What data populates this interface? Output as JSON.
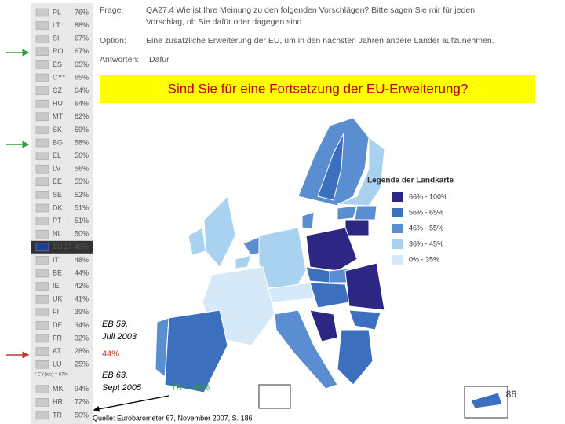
{
  "header": {
    "question_label": "Frage:",
    "question_lines": [
      "QA27.4 Wie ist Ihre Meinung zu den folgenden Vorschlägen? Bitte sagen Sie mir für jeden",
      "Vorschlag, ob Sie dafür oder dagegen sind."
    ],
    "option_label": "Option:",
    "option": "Eine zusätzliche Erweiterung der EU, um in den nächsten Jahren andere Länder aufzunehmen.",
    "answer_label": "Antworten:",
    "answer": "Dafür"
  },
  "banner": "Sind Sie für eine Fortsetzung der EU-Erweiterung?",
  "ranking": {
    "rows": [
      [
        "PL",
        "76%"
      ],
      [
        "LT",
        "68%"
      ],
      [
        "SI",
        "67%"
      ],
      [
        "RO",
        "67%"
      ],
      [
        "ES",
        "65%"
      ],
      [
        "CY*",
        "65%"
      ],
      [
        "CZ",
        "64%"
      ],
      [
        "HU",
        "64%"
      ],
      [
        "MT",
        "62%"
      ],
      [
        "SK",
        "59%"
      ],
      [
        "BG",
        "58%"
      ],
      [
        "EL",
        "56%"
      ],
      [
        "LV",
        "56%"
      ],
      [
        "EE",
        "55%"
      ],
      [
        "SE",
        "52%"
      ],
      [
        "DK",
        "51%"
      ],
      [
        "PT",
        "51%"
      ],
      [
        "NL",
        "50%"
      ],
      [
        "EU 27",
        "49%"
      ],
      [
        "IT",
        "48%"
      ],
      [
        "BE",
        "44%"
      ],
      [
        "IE",
        "42%"
      ],
      [
        "UK",
        "41%"
      ],
      [
        "FI",
        "39%"
      ],
      [
        "DE",
        "34%"
      ],
      [
        "FR",
        "32%"
      ],
      [
        "AT",
        "28%"
      ],
      [
        "LU",
        "25%"
      ]
    ],
    "note": "* CY(tcc) = 67%",
    "candidate_rows": [
      [
        "MK",
        "94%"
      ],
      [
        "HR",
        "72%"
      ],
      [
        "TR",
        "50%"
      ]
    ]
  },
  "legend": {
    "title": "Legende der Landkarte",
    "items": [
      "66% - 100%",
      "56% - 65%",
      "46% - 55%",
      "36% - 45%",
      "0% - 35%"
    ]
  },
  "annotations": {
    "eb59": [
      "EB 59,",
      "Juli 2003"
    ],
    "eb59_value": "44%",
    "eb63": [
      "EB 63,",
      "Sept 2005"
    ],
    "tr_value": "TR = 66%",
    "page_number": "86",
    "source": "Quelle: Eurobarometer 67, November 2007, S. 186"
  }
}
